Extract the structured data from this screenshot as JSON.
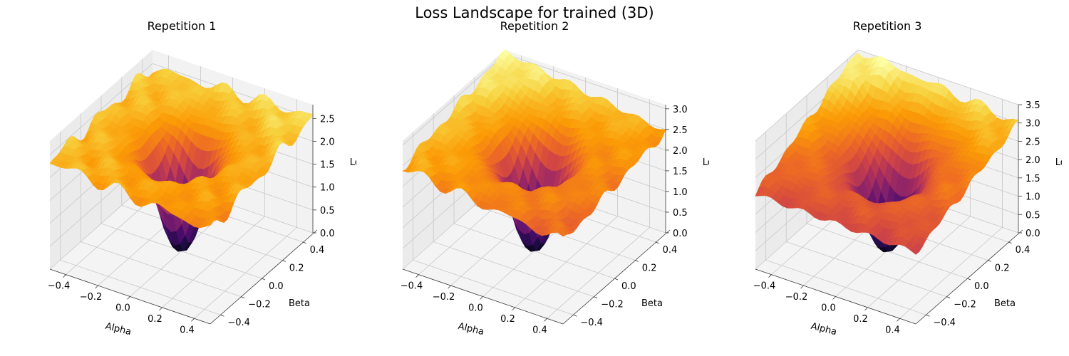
{
  "figure": {
    "title": "Loss Landscape for trained (3D)"
  },
  "colormap": [
    "#000004",
    "#1b0c41",
    "#4a0c6b",
    "#781c6d",
    "#a52c60",
    "#cf4446",
    "#ed6925",
    "#fb9b06",
    "#f7d13d",
    "#fcffa4"
  ],
  "chart_data": [
    {
      "type": "surface",
      "title": "Repetition 1",
      "xlabel": "Alpha",
      "ylabel": "Beta",
      "zlabel": "Loss",
      "xlim": [
        -0.5,
        0.5
      ],
      "ylim": [
        -0.5,
        0.5
      ],
      "zlim": [
        0,
        2.8
      ],
      "xticks": [
        "−0.4",
        "−0.2",
        "0.0",
        "0.2",
        "0.4"
      ],
      "yticks": [
        "−0.4",
        "−0.2",
        "0.0",
        "0.2",
        "0.4"
      ],
      "zticks": [
        "0.0",
        "0.5",
        "1.0",
        "1.5",
        "2.0",
        "2.5"
      ],
      "zticks_values": [
        0,
        0.5,
        1,
        1.5,
        2,
        2.5
      ],
      "minimum": {
        "alpha": 0.0,
        "beta": 0.0,
        "loss": 0.0
      },
      "corner_loss": {
        "alpha-min_beta-min": 2.35,
        "alpha-max_beta-min": 2.05,
        "alpha-max_beta-max": 2.55,
        "alpha-min_beta-max": 2.4
      },
      "rim_loss": 2.2,
      "grid": true
    },
    {
      "type": "surface",
      "title": "Repetition 2",
      "xlabel": "Alpha",
      "ylabel": "Beta",
      "zlabel": "Loss",
      "xlim": [
        -0.5,
        0.5
      ],
      "ylim": [
        -0.5,
        0.5
      ],
      "zlim": [
        0,
        3.1
      ],
      "xticks": [
        "−0.4",
        "−0.2",
        "0.0",
        "0.2",
        "0.4"
      ],
      "yticks": [
        "−0.4",
        "−0.2",
        "0.0",
        "0.2",
        "0.4"
      ],
      "zticks": [
        "0.0",
        "0.5",
        "1.0",
        "1.5",
        "2.0",
        "2.5",
        "3.0"
      ],
      "zticks_values": [
        0,
        0.5,
        1,
        1.5,
        2,
        2.5,
        3
      ],
      "minimum": {
        "alpha": 0.0,
        "beta": 0.0,
        "loss": 0.0
      },
      "corner_loss": {
        "alpha-min_beta-min": 2.45,
        "alpha-max_beta-min": 2.0,
        "alpha-max_beta-max": 2.45,
        "alpha-min_beta-max": 3.05
      },
      "rim_loss": 2.3,
      "grid": true
    },
    {
      "type": "surface",
      "title": "Repetition 3",
      "xlabel": "Alpha",
      "ylabel": "Beta",
      "zlabel": "Loss",
      "xlim": [
        -0.5,
        0.5
      ],
      "ylim": [
        -0.5,
        0.5
      ],
      "zlim": [
        0,
        3.5
      ],
      "xticks": [
        "−0.4",
        "−0.2",
        "0.0",
        "0.2",
        "0.4"
      ],
      "yticks": [
        "−0.4",
        "−0.2",
        "0.0",
        "0.2",
        "0.4"
      ],
      "zticks": [
        "0.0",
        "0.5",
        "1.0",
        "1.5",
        "2.0",
        "2.5",
        "3.0",
        "3.5"
      ],
      "zticks_values": [
        0,
        0.5,
        1,
        1.5,
        2,
        2.5,
        3,
        3.5
      ],
      "minimum": {
        "alpha": 0.0,
        "beta": 0.0,
        "loss": 0.0
      },
      "corner_loss": {
        "alpha-min_beta-min": 2.05,
        "alpha-max_beta-min": 1.95,
        "alpha-max_beta-max": 3.0,
        "alpha-min_beta-max": 3.5
      },
      "rim_loss": 2.2,
      "grid": true
    }
  ]
}
